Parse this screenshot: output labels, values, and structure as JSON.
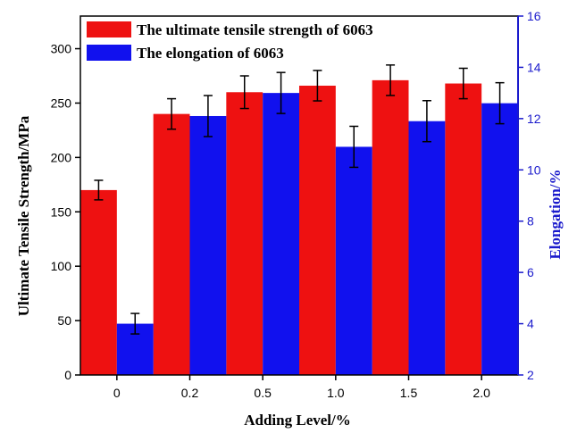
{
  "chart_data": {
    "type": "bar",
    "categories": [
      "0",
      "0.2",
      "0.5",
      "1.0",
      "1.5",
      "2.0"
    ],
    "xlabel": "Adding Level/%",
    "ylabel_left": "Ultimate Tensile Strength/MPa",
    "ylabel_right": "Elongation/%",
    "y_left_range": [
      0,
      330
    ],
    "y_left_ticks": [
      0,
      50,
      100,
      150,
      200,
      250,
      300
    ],
    "y_right_range": [
      2,
      16
    ],
    "y_right_ticks": [
      2,
      4,
      6,
      8,
      10,
      12,
      14,
      16
    ],
    "legend_position": "top-left",
    "grid": false,
    "series": [
      {
        "name": "The ultimate tensile strength of 6063",
        "axis": "left",
        "color": "#ee1111",
        "values": [
          170,
          240,
          260,
          266,
          271,
          268
        ],
        "errors": [
          9,
          14,
          15,
          14,
          14,
          14
        ]
      },
      {
        "name": "The elongation of 6063",
        "axis": "right",
        "color": "#1111ee",
        "values": [
          4.0,
          12.1,
          13.0,
          10.9,
          11.9,
          12.6
        ],
        "errors": [
          0.4,
          0.8,
          0.8,
          0.8,
          0.8,
          0.8
        ]
      }
    ],
    "axis_colors": {
      "left": "#000000",
      "right": "#1a1acc"
    }
  }
}
